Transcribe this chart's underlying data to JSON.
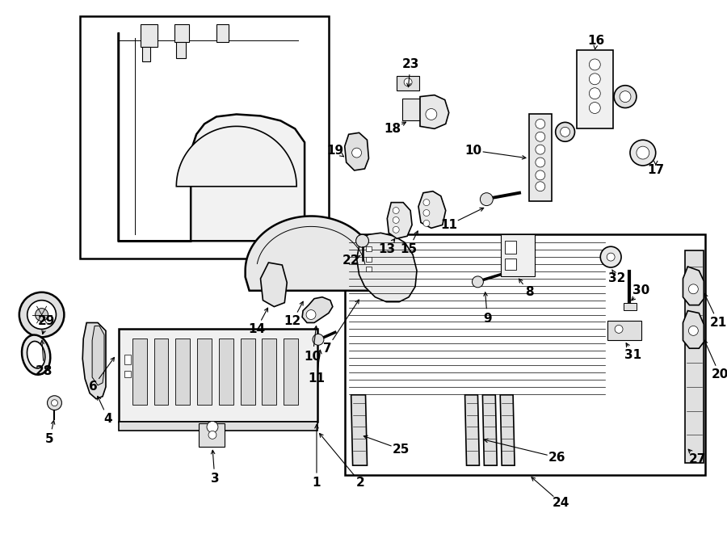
{
  "bg_color": "#ffffff",
  "line_color": "#000000",
  "fig_width": 9.0,
  "fig_height": 6.61,
  "lw_main": 1.2,
  "lw_thin": 0.7,
  "lw_thick": 1.8,
  "label_fs": 11
}
